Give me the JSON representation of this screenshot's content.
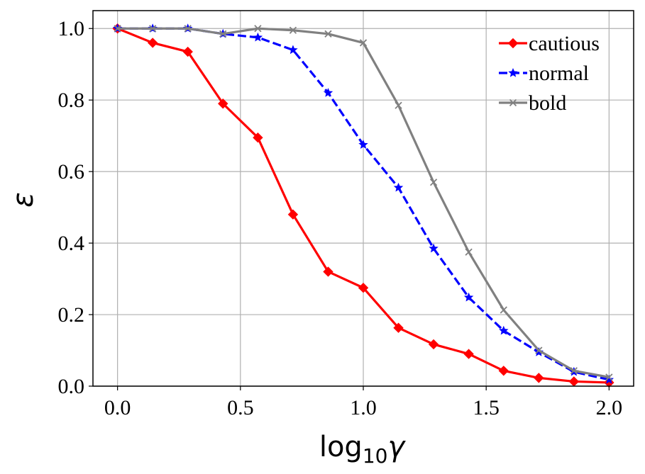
{
  "chart_data": {
    "type": "line",
    "title": "",
    "xlabel_base": "log",
    "xlabel_sub": "10",
    "xlabel_var": "γ",
    "ylabel": "ε",
    "xlim": [
      -0.1,
      2.1
    ],
    "ylim": [
      0.0,
      1.05
    ],
    "grid": true,
    "legend_position": "top-right",
    "xticks": [
      0.0,
      0.5,
      1.0,
      1.5,
      2.0
    ],
    "xtick_labels": [
      "0.0",
      "0.5",
      "1.0",
      "1.5",
      "2.0"
    ],
    "yticks": [
      0.0,
      0.2,
      0.4,
      0.6,
      0.8,
      1.0
    ],
    "ytick_labels": [
      "0.0",
      "0.2",
      "0.4",
      "0.6",
      "0.8",
      "1.0"
    ],
    "x": [
      0.0,
      0.143,
      0.286,
      0.429,
      0.571,
      0.714,
      0.857,
      1.0,
      1.143,
      1.286,
      1.429,
      1.571,
      1.714,
      1.857,
      2.0
    ],
    "series": [
      {
        "name": "cautious",
        "color": "#ff0000",
        "marker": "diamond",
        "dash": "solid",
        "values": [
          1.0,
          0.96,
          0.935,
          0.79,
          0.695,
          0.48,
          0.32,
          0.275,
          0.163,
          0.117,
          0.09,
          0.043,
          0.023,
          0.013,
          0.01
        ]
      },
      {
        "name": "normal",
        "color": "#0000ff",
        "marker": "star",
        "dash": "dashed",
        "values": [
          1.0,
          1.0,
          1.0,
          0.985,
          0.975,
          0.94,
          0.82,
          0.675,
          0.555,
          0.385,
          0.248,
          0.155,
          0.095,
          0.04,
          0.018
        ]
      },
      {
        "name": "bold",
        "color": "#808080",
        "marker": "x",
        "dash": "solid",
        "values": [
          1.0,
          1.0,
          1.0,
          0.985,
          1.0,
          0.995,
          0.985,
          0.96,
          0.785,
          0.57,
          0.375,
          0.213,
          0.1,
          0.043,
          0.025
        ]
      }
    ]
  }
}
